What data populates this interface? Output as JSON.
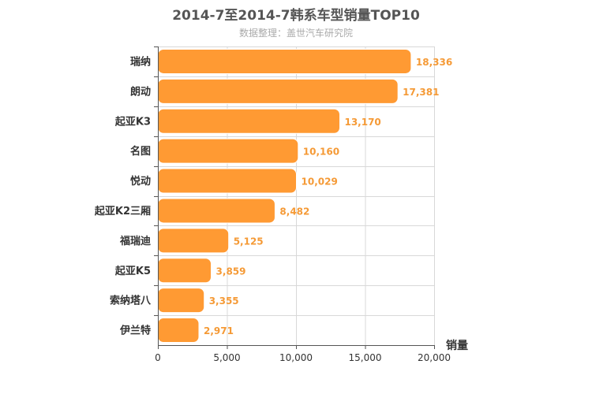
{
  "chart_data": {
    "type": "bar",
    "orientation": "horizontal",
    "title": "2014-7至2014-7韩系车型销量TOP10",
    "subtitle": "数据整理：盖世汽车研究院",
    "xlabel": "销量",
    "ylabel": "",
    "categories": [
      "瑞纳",
      "朗动",
      "起亚K3",
      "名图",
      "悦动",
      "起亚K2三厢",
      "福瑞迪",
      "起亚K5",
      "索纳塔八",
      "伊兰特"
    ],
    "values": [
      18336,
      17381,
      13170,
      10160,
      10029,
      8482,
      5125,
      3859,
      3355,
      2971
    ],
    "value_labels": [
      "18,336",
      "17,381",
      "13,170",
      "10,160",
      "10,029",
      "8,482",
      "5,125",
      "3,859",
      "3,355",
      "2,971"
    ],
    "xlim": [
      0,
      20000
    ],
    "ticks": [
      0,
      5000,
      10000,
      15000,
      20000
    ],
    "tick_labels": [
      "0",
      "5,000",
      "10,000",
      "15,000",
      "20,000"
    ],
    "grid": true,
    "legend": "none",
    "colors": {
      "bar": "#ff9a33",
      "bar_stroke": "#ffffff",
      "value_label": "#f59a36",
      "grid": "#d8d8d8",
      "axis": "#555555"
    }
  }
}
